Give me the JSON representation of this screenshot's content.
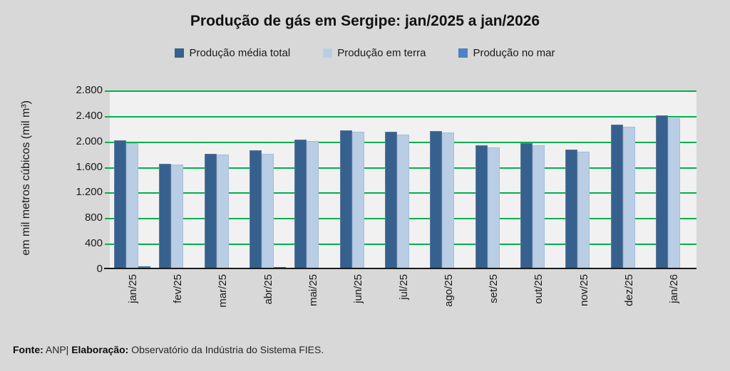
{
  "title": "Produção de gás em Sergipe: jan/2025 a jan/2026",
  "legend": [
    {
      "label": "Produção média total",
      "color": "#36618e"
    },
    {
      "label": "Produção em terra",
      "color": "#b9cde4"
    },
    {
      "label": "Produção no mar",
      "color": "#4d82c4"
    }
  ],
  "footer": {
    "fonte_label": "Fonte:",
    "fonte_value": " ANP| ",
    "elaboracao_label": "Elaboração:",
    "elaboracao_value": " Observatório da Indústria do Sistema FIES."
  },
  "colors": {
    "page_background": "#d8d8d8",
    "plot_background": "#f1f1f1",
    "gridline": "#00b050",
    "axis": "#1a1a1a"
  },
  "chart_data": {
    "type": "bar",
    "title": "Produção de gás em Sergipe: jan/2025 a jan/2026",
    "xlabel": "",
    "ylabel": "em mil metros cúbicos (mil m³)",
    "ylim": [
      0,
      2800
    ],
    "ytick_interval": 400,
    "ytick_labels": [
      "0",
      "400",
      "800",
      "1.200",
      "1.600",
      "2.000",
      "2.400",
      "2.800"
    ],
    "grid": true,
    "legend_position": "top",
    "categories": [
      "jan/25",
      "fev/25",
      "mar/25",
      "abr/25",
      "mai/25",
      "jun/25",
      "jul/25",
      "ago/25",
      "set/25",
      "out/25",
      "nov/25",
      "dez/25",
      "jan/26"
    ],
    "series": [
      {
        "name": "Produção média total",
        "color": "#36618e",
        "values": [
          2020,
          1655,
          1810,
          1865,
          2030,
          2180,
          2150,
          2160,
          1940,
          1970,
          1875,
          2260,
          2410
        ]
      },
      {
        "name": "Produção em terra",
        "color": "#b9cde4",
        "values": [
          1970,
          1645,
          1800,
          1810,
          2005,
          2150,
          2110,
          2140,
          1910,
          1945,
          1840,
          2230,
          2370
        ]
      },
      {
        "name": "Produção no mar",
        "color": "#4d82c4",
        "values": [
          45,
          5,
          5,
          35,
          20,
          20,
          20,
          20,
          15,
          15,
          10,
          15,
          15
        ]
      }
    ]
  }
}
